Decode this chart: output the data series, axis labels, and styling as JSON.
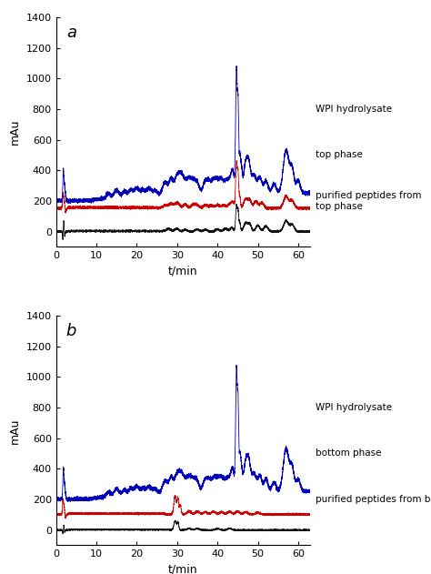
{
  "title_a": "a",
  "title_b": "b",
  "xlabel": "t/min",
  "ylabel": "mAu",
  "xlim": [
    0,
    63
  ],
  "ylim_a": [
    -100,
    1400
  ],
  "ylim_b": [
    -100,
    1400
  ],
  "yticks": [
    0,
    200,
    400,
    600,
    800,
    1000,
    1200,
    1400
  ],
  "xticks": [
    0,
    10,
    20,
    30,
    40,
    50,
    60
  ],
  "colors": {
    "blue": "#0000bb",
    "red": "#cc0000",
    "black": "#111111"
  },
  "legend_a": [
    "WPI hydrolysate",
    "top phase",
    "purified peptides from top phase"
  ],
  "legend_b": [
    "WPI hydrolysate",
    "bottom phase",
    "purified peptides from bottom phase"
  ],
  "figsize": [
    4.74,
    6.31
  ],
  "dpi": 100
}
